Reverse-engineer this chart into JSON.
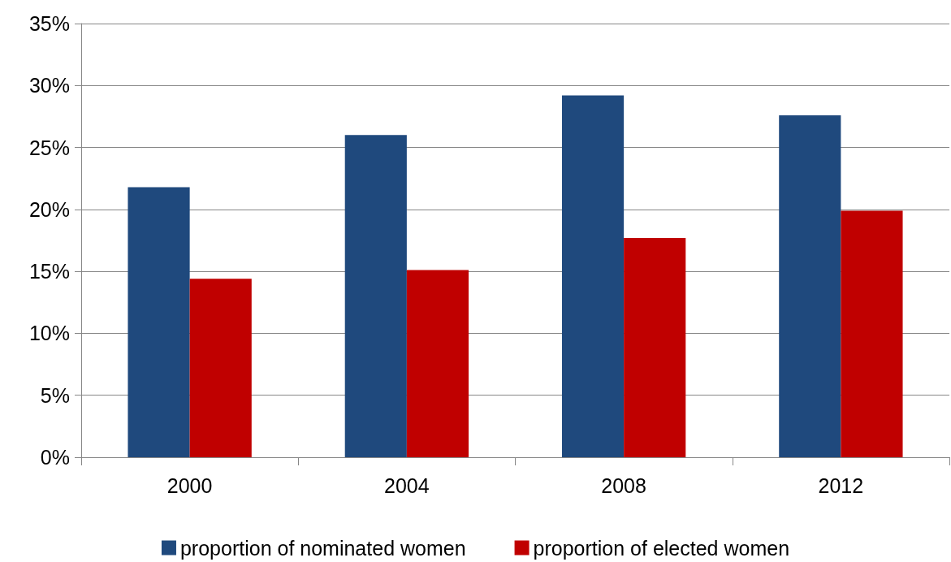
{
  "chart_data": {
    "type": "bar",
    "categories": [
      "2000",
      "2004",
      "2008",
      "2012"
    ],
    "series": [
      {
        "name": "proportion of nominated women",
        "color": "#1f497d",
        "values": [
          21.8,
          26.0,
          29.2,
          27.6
        ]
      },
      {
        "name": "proportion of elected women",
        "color": "#c00000",
        "values": [
          14.4,
          15.1,
          17.7,
          19.9
        ]
      }
    ],
    "ylim": [
      0,
      35
    ],
    "yticks": [
      {
        "value": 0,
        "label": "0%"
      },
      {
        "value": 5,
        "label": "5%"
      },
      {
        "value": 10,
        "label": "10%"
      },
      {
        "value": 15,
        "label": "15%"
      },
      {
        "value": 20,
        "label": "20%"
      },
      {
        "value": 25,
        "label": "25%"
      },
      {
        "value": 30,
        "label": "30%"
      },
      {
        "value": 35,
        "label": "35%"
      }
    ],
    "grid": "y",
    "legend": "bottom"
  }
}
